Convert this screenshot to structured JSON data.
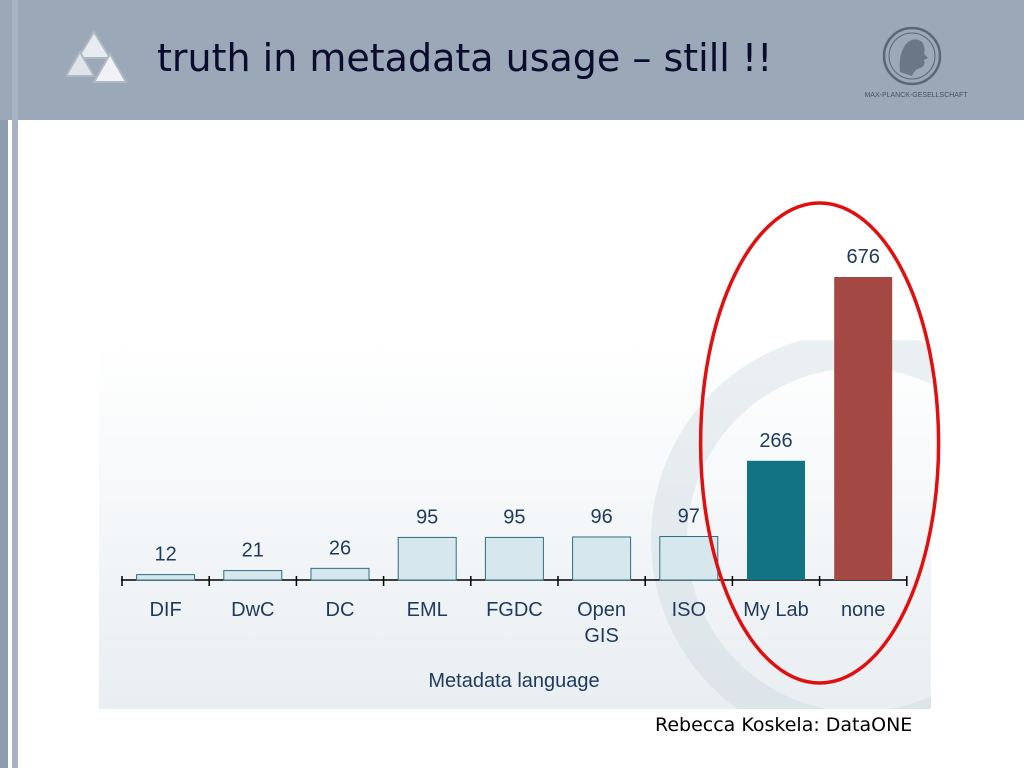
{
  "slide": {
    "title": "truth in metadata usage – still !!",
    "credit": "Rebecca Koskela: DataONE",
    "logo_text": "MAX-PLANCK-GESELLSCHAFT"
  },
  "chart_data": {
    "type": "bar",
    "xlabel": "Metadata language",
    "categories": [
      "DIF",
      "DwC",
      "DC",
      "EML",
      "FGDC",
      "Open\nGIS",
      "ISO",
      "My Lab",
      "none"
    ],
    "values": [
      12,
      21,
      26,
      95,
      95,
      96,
      97,
      266,
      676
    ],
    "bar_colors": [
      "#d6e8ee",
      "#d6e8ee",
      "#d6e8ee",
      "#d6e8ee",
      "#d6e8ee",
      "#d6e8ee",
      "#d6e8ee",
      "#127384",
      "#a34843"
    ],
    "ylim": [
      0,
      676
    ],
    "grid": false,
    "highlight_color": "#e01010"
  }
}
